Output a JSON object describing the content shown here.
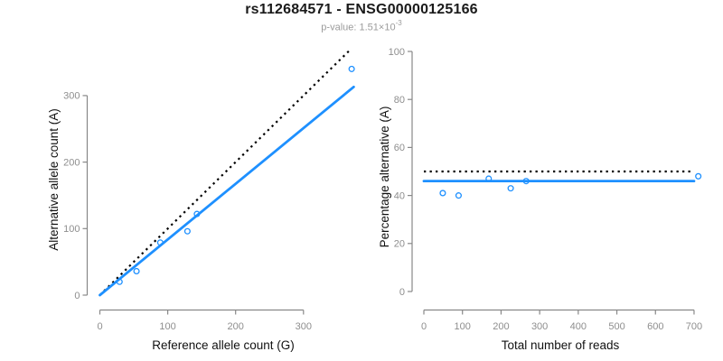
{
  "header": {
    "title": "rs112684571 - ENSG00000125166",
    "subtitle_prefix": "p-value: 1.51×10",
    "subtitle_exponent": "-3"
  },
  "colors": {
    "accent_blue": "#1E90FF",
    "dotted_black": "#000000",
    "axis_gray": "#888888",
    "tick_label_gray": "#8e8e8e",
    "title_black": "#1a1a1a",
    "subtitle_gray": "#9b9b9b",
    "background": "#ffffff"
  },
  "chart_data": [
    {
      "type": "scatter",
      "name": "allele-counts",
      "xlabel": "Reference allele count (G)",
      "ylabel": "Alternative allele count (A)",
      "xlim": [
        -20,
        385
      ],
      "ylim": [
        -22,
        372
      ],
      "xticks": [
        0,
        100,
        200,
        300
      ],
      "yticks": [
        0,
        100,
        200,
        300
      ],
      "grid": false,
      "legend": null,
      "points": [
        [
          29,
          20
        ],
        [
          54,
          36
        ],
        [
          89,
          79
        ],
        [
          129,
          96
        ],
        [
          143,
          122
        ],
        [
          371,
          340
        ]
      ],
      "lines": [
        {
          "name": "identity-line",
          "style": "dotted",
          "color": "#000000",
          "x1": 0,
          "y1": 0,
          "x2": 370,
          "y2": 370
        },
        {
          "name": "fit-line",
          "style": "solid",
          "color": "#1E90FF",
          "x1": 0,
          "y1": 0,
          "x2": 374,
          "y2": 313
        }
      ]
    },
    {
      "type": "scatter",
      "name": "percentage-vs-reads",
      "xlabel": "Total number of reads",
      "ylabel": "Percentage alternative (A)",
      "xlim": [
        -28,
        725
      ],
      "ylim": [
        -8,
        107
      ],
      "xticks": [
        0,
        100,
        200,
        300,
        400,
        500,
        600,
        700
      ],
      "yticks": [
        0,
        20,
        40,
        60,
        80,
        100
      ],
      "grid": false,
      "legend": null,
      "points": [
        [
          49,
          41
        ],
        [
          90,
          40
        ],
        [
          168,
          47
        ],
        [
          225,
          43
        ],
        [
          265,
          46
        ],
        [
          711,
          48
        ]
      ],
      "lines": [
        {
          "name": "expected-line",
          "style": "dotted",
          "color": "#000000",
          "x1": 0,
          "y1": 50,
          "x2": 700,
          "y2": 50
        },
        {
          "name": "fit-line",
          "style": "solid",
          "color": "#1E90FF",
          "x1": 0,
          "y1": 46,
          "x2": 700,
          "y2": 46
        }
      ]
    }
  ]
}
